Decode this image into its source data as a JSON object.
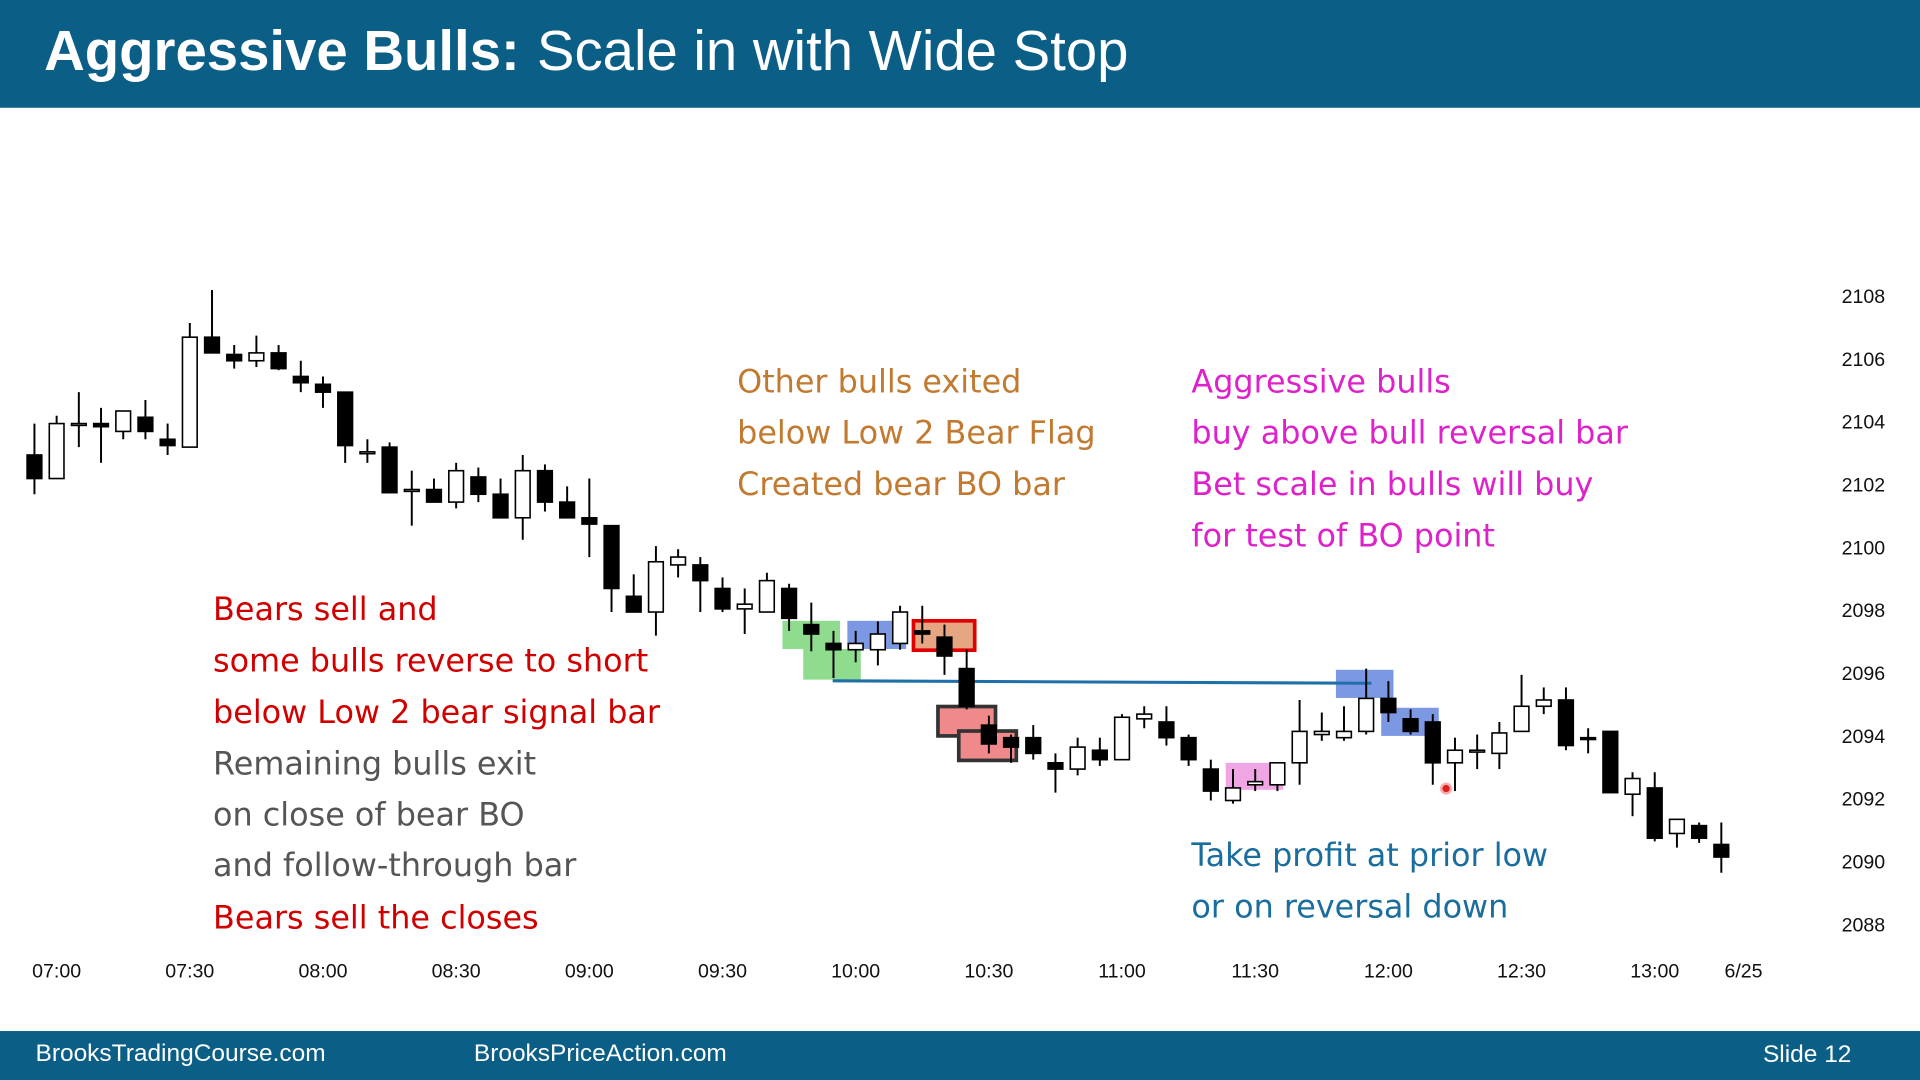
{
  "header": {
    "title_bold": "Aggressive Bulls:",
    "title_rest": "Scale in with Wide Stop"
  },
  "footer": {
    "left": "BrooksTradingCourse.com",
    "middle": "BrooksPriceAction.com",
    "right": "Slide  12"
  },
  "chart_data": {
    "type": "candlestick",
    "up_color": "#ffffff",
    "down_color": "#000000",
    "x": [
      415,
      420,
      425,
      430,
      435,
      440,
      445,
      450,
      455,
      460,
      465,
      470,
      475,
      480,
      485,
      490,
      495,
      500,
      505,
      510,
      515,
      520,
      525,
      530,
      535,
      540,
      545,
      550,
      555,
      560,
      565,
      570,
      575,
      580,
      585,
      590,
      595,
      600,
      605,
      610,
      615,
      620,
      625,
      630,
      635,
      640,
      645,
      650,
      655,
      660,
      665,
      670,
      675,
      680,
      685,
      690,
      695,
      700,
      705,
      710,
      715,
      720,
      725,
      730,
      735,
      740,
      745,
      750,
      755,
      760,
      765,
      770,
      775,
      780,
      785,
      790,
      795
    ],
    "open": [
      2103,
      2102.25,
      2104,
      2104,
      2103.75,
      2104.2,
      2103.5,
      2103.25,
      2106.75,
      2106.2,
      2106,
      2106.25,
      2105.5,
      2105.25,
      2105,
      2103.1,
      2103.25,
      2101.9,
      2101.9,
      2101.5,
      2102.3,
      2101.75,
      2101,
      2102.5,
      2101.5,
      2101,
      2100.75,
      2098.5,
      2098,
      2099.5,
      2099.5,
      2098.75,
      2098.1,
      2098,
      2098.75,
      2097.6,
      2097,
      2096.8,
      2096.8,
      2097,
      2097.4,
      2097.2,
      2096.2,
      2094.4,
      2094,
      2094,
      2093.2,
      2093,
      2093.6,
      2093.3,
      2094.6,
      2094.5,
      2094,
      2093,
      2092,
      2092.5,
      2092.5,
      2093.2,
      2094.1,
      2094,
      2094.2,
      2095.25,
      2094.6,
      2094.5,
      2093.2,
      2093.55,
      2093.5,
      2094.2,
      2095,
      2095.2,
      2094,
      2094.2,
      2092.2,
      2092.4,
      2090.95,
      2091.2,
      2090.6
    ],
    "high": [
      2104,
      2104.25,
      2105,
      2104.5,
      2104.4,
      2104.75,
      2104,
      2107.2,
      2108.25,
      2106.5,
      2106.8,
      2106.5,
      2106,
      2105.5,
      2105,
      2103.5,
      2103.4,
      2102.5,
      2102.25,
      2102.75,
      2102.6,
      2102.25,
      2103,
      2102.7,
      2102,
      2102.25,
      2100.75,
      2099.2,
      2100.1,
      2100,
      2099.75,
      2099.1,
      2098.75,
      2099.25,
      2098.9,
      2098.3,
      2097.4,
      2097.4,
      2097.7,
      2098.2,
      2098.2,
      2097.6,
      2096.8,
      2094.7,
      2094.1,
      2094.4,
      2093.5,
      2094,
      2094,
      2094.75,
      2095,
      2095,
      2094.1,
      2093.3,
      2093,
      2093,
      2093.2,
      2095.2,
      2094.8,
      2095,
      2096.2,
      2095.8,
      2094.9,
      2094.75,
      2094,
      2094.1,
      2094.5,
      2096,
      2095.6,
      2095.6,
      2094.3,
      2094.2,
      2092.9,
      2092.9,
      2091.4,
      2091.3,
      2091.3
    ],
    "low": [
      2101.75,
      2102.25,
      2103.25,
      2102.75,
      2103.5,
      2103.5,
      2103,
      2103.25,
      2106.25,
      2105.75,
      2105.8,
      2105.7,
      2105,
      2104.5,
      2102.75,
      2102.75,
      2101.8,
      2100.75,
      2101.5,
      2101.3,
      2101.5,
      2101,
      2100.3,
      2101.2,
      2101,
      2099.75,
      2098,
      2098,
      2097.25,
      2099.1,
      2098,
      2098,
      2097.3,
      2098,
      2097.4,
      2096.75,
      2095.9,
      2096.4,
      2096.3,
      2096.8,
      2097,
      2096,
      2094.9,
      2093.5,
      2093.2,
      2093.3,
      2092.25,
      2092.8,
      2093.1,
      2093.3,
      2094.3,
      2093.75,
      2093.1,
      2092,
      2091.9,
      2092.3,
      2092.3,
      2092.5,
      2093.9,
      2093.9,
      2094.1,
      2094.5,
      2094.1,
      2092.5,
      2092.3,
      2093,
      2093,
      2094.2,
      2094.75,
      2093.6,
      2093.5,
      2092.25,
      2091.5,
      2090.7,
      2090.5,
      2090.65,
      2089.7
    ],
    "close": [
      2102.25,
      2104,
      2104,
      2103.9,
      2104.4,
      2103.75,
      2103.3,
      2106.75,
      2106.25,
      2106,
      2106.25,
      2105.75,
      2105.3,
      2105,
      2103.3,
      2103.1,
      2101.8,
      2101.9,
      2101.5,
      2102.5,
      2101.75,
      2101,
      2102.5,
      2101.5,
      2101,
      2100.8,
      2098.75,
      2098,
      2099.6,
      2099.75,
      2099,
      2098.1,
      2098.25,
      2099,
      2097.8,
      2097.3,
      2096.8,
      2097,
      2097.3,
      2098,
      2097.3,
      2096.6,
      2095,
      2093.8,
      2093.7,
      2093.5,
      2093,
      2093.7,
      2093.3,
      2094.65,
      2094.75,
      2094,
      2093.3,
      2092.3,
      2092.4,
      2092.6,
      2093.2,
      2094.2,
      2094.2,
      2094.2,
      2095.25,
      2094.8,
      2094.2,
      2093.2,
      2093.6,
      2093.6,
      2094.15,
      2095,
      2095.2,
      2093.75,
      2093.95,
      2092.25,
      2092.7,
      2090.8,
      2091.4,
      2090.8,
      2090.2
    ],
    "xlim": [
      410,
      805
    ],
    "xticks": [
      {
        "value": 420,
        "label": "07:00"
      },
      {
        "value": 450,
        "label": "07:30"
      },
      {
        "value": 480,
        "label": "08:00"
      },
      {
        "value": 510,
        "label": "08:30"
      },
      {
        "value": 540,
        "label": "09:00"
      },
      {
        "value": 570,
        "label": "09:30"
      },
      {
        "value": 600,
        "label": "10:00"
      },
      {
        "value": 630,
        "label": "10:30"
      },
      {
        "value": 660,
        "label": "11:00"
      },
      {
        "value": 690,
        "label": "11:30"
      },
      {
        "value": 720,
        "label": "12:00"
      },
      {
        "value": 750,
        "label": "12:30"
      },
      {
        "value": 780,
        "label": "13:00"
      },
      {
        "value": 800,
        "label": "6/25"
      }
    ],
    "ylim": [
      2087,
      2110
    ],
    "yticks": [
      2088,
      2090,
      2092,
      2094,
      2096,
      2098,
      2100,
      2102,
      2104,
      2106,
      2108
    ],
    "annotations": {
      "exits": [
        "Other bulls exited",
        "below Low 2 Bear Flag",
        "Created bear BO bar"
      ],
      "aggressive": [
        "Aggressive bulls",
        "buy above bull reversal bar",
        "Bet scale in bulls will buy",
        "for test of BO point"
      ],
      "bears": [
        "Bears sell and",
        "some bulls reverse to short",
        "below Low 2 bear signal bar",
        "Remaining bulls exit",
        "on close of bear BO",
        "and follow-through bar",
        "Bears sell the closes"
      ],
      "profit": [
        "Take profit at prior low",
        "or on reversal down"
      ]
    }
  }
}
